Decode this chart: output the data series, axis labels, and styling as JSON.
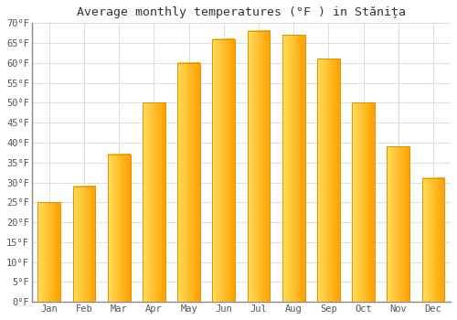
{
  "title": "Average monthly temperatures (°F ) in Stănița",
  "months": [
    "Jan",
    "Feb",
    "Mar",
    "Apr",
    "May",
    "Jun",
    "Jul",
    "Aug",
    "Sep",
    "Oct",
    "Nov",
    "Dec"
  ],
  "values": [
    25,
    29,
    37,
    50,
    60,
    66,
    68,
    67,
    61,
    50,
    39,
    31
  ],
  "bar_color_left": "#FFD54F",
  "bar_color_right": "#FFA000",
  "bar_edge_color": "#E69000",
  "background_color": "#ffffff",
  "grid_color": "#dddddd",
  "ylim": [
    0,
    70
  ],
  "yticks": [
    0,
    5,
    10,
    15,
    20,
    25,
    30,
    35,
    40,
    45,
    50,
    55,
    60,
    65,
    70
  ],
  "ytick_labels": [
    "0°F",
    "5°F",
    "10°F",
    "15°F",
    "20°F",
    "25°F",
    "30°F",
    "35°F",
    "40°F",
    "45°F",
    "50°F",
    "55°F",
    "60°F",
    "65°F",
    "70°F"
  ],
  "title_fontsize": 9.5,
  "tick_fontsize": 7.5,
  "figsize": [
    5.0,
    3.5
  ],
  "dpi": 100
}
